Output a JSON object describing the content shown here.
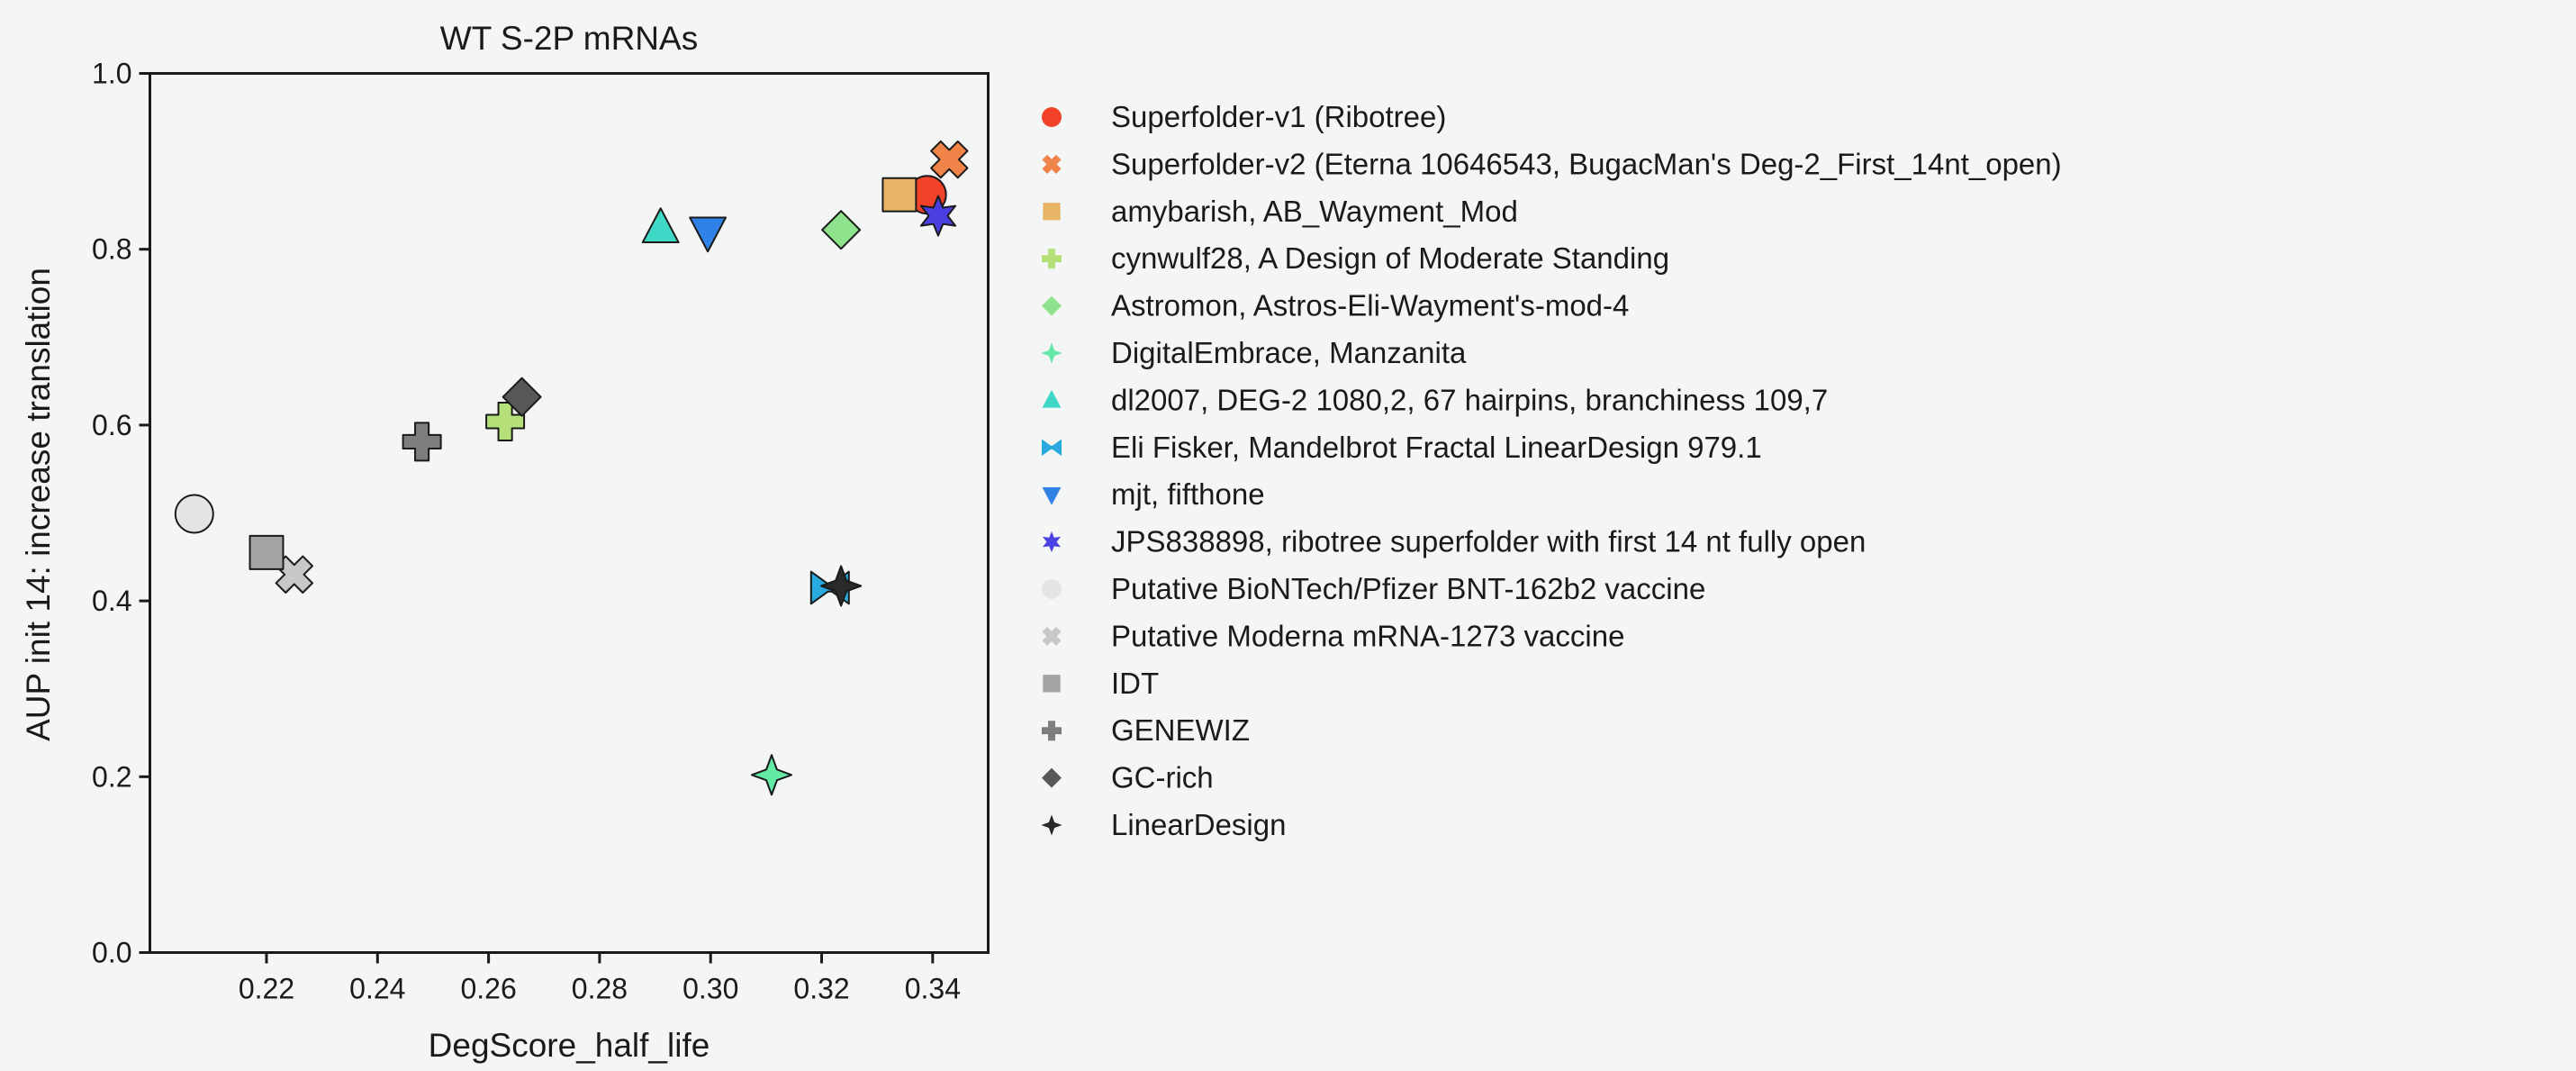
{
  "chart_data": {
    "type": "scatter",
    "title": "WT S-2P mRNAs",
    "xlabel": "DegScore_half_life",
    "ylabel": "AUP init 14: increase translation",
    "xlim": [
      0.199,
      0.35
    ],
    "ylim": [
      0.0,
      1.0
    ],
    "xticks": [
      0.22,
      0.24,
      0.26,
      0.28,
      0.3,
      0.32,
      0.34
    ],
    "yticks": [
      0.0,
      0.2,
      0.4,
      0.6,
      0.8,
      1.0
    ],
    "grid": false,
    "legend_position": "outside-right",
    "series": [
      {
        "name": "Superfolder-v1 (Ribotree)",
        "color": "#f2432a",
        "marker": "circle",
        "x": 0.339,
        "y": 0.862
      },
      {
        "name": "Superfolder-v2 (Eterna 10646543, BugacMan's Deg-2_First_14nt_open)",
        "color": "#f08448",
        "marker": "x",
        "x": 0.343,
        "y": 0.902
      },
      {
        "name": "amybarish, AB_Wayment_Mod",
        "color": "#e8b466",
        "marker": "square",
        "x": 0.334,
        "y": 0.862
      },
      {
        "name": "cynwulf28, A Design of Moderate Standing",
        "color": "#b5e07a",
        "marker": "plus",
        "x": 0.263,
        "y": 0.604
      },
      {
        "name": "Astromon, Astros-Eli-Wayment's-mod-4",
        "color": "#8fe38c",
        "marker": "diamond",
        "x": 0.3235,
        "y": 0.822
      },
      {
        "name": "DigitalEmbrace, Manzanita",
        "color": "#63eba6",
        "marker": "star4",
        "x": 0.311,
        "y": 0.202
      },
      {
        "name": "dl2007, DEG-2 1080,2, 67 hairpins, branchiness 109,7",
        "color": "#3fd8c6",
        "marker": "triangle-up",
        "x": 0.291,
        "y": 0.824
      },
      {
        "name": "Eli Fisker, Mandelbrot Fractal LinearDesign 979.1",
        "color": "#2aa9de",
        "marker": "bowtie",
        "x": 0.3215,
        "y": 0.415
      },
      {
        "name": "mjt, fifthone",
        "color": "#3182e6",
        "marker": "triangle-down",
        "x": 0.2995,
        "y": 0.82
      },
      {
        "name": "JPS838898, ribotree superfolder with first 14 nt fully open",
        "color": "#4a3fe0",
        "marker": "star6",
        "x": 0.341,
        "y": 0.838
      },
      {
        "name": "Putative BioNTech/Pfizer BNT-162b2 vaccine",
        "color": "#e4e4e4",
        "marker": "circle",
        "x": 0.207,
        "y": 0.499
      },
      {
        "name": "Putative Moderna mRNA-1273 vaccine",
        "color": "#c8c8c8",
        "marker": "x",
        "x": 0.225,
        "y": 0.43
      },
      {
        "name": "IDT",
        "color": "#a3a3a3",
        "marker": "square",
        "x": 0.22,
        "y": 0.455
      },
      {
        "name": "GENEWIZ",
        "color": "#7d7d7d",
        "marker": "plus",
        "x": 0.248,
        "y": 0.581
      },
      {
        "name": "GC-rich",
        "color": "#575757",
        "marker": "diamond",
        "x": 0.266,
        "y": 0.632
      },
      {
        "name": "LinearDesign",
        "color": "#2a2a2a",
        "marker": "star4",
        "x": 0.3235,
        "y": 0.417
      }
    ]
  }
}
